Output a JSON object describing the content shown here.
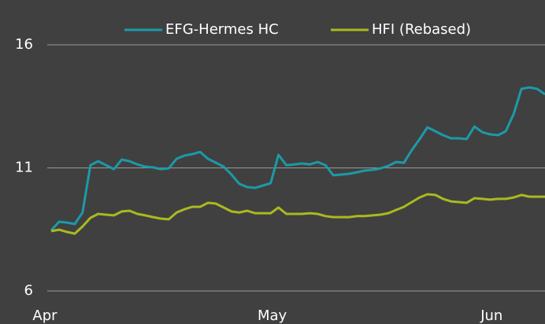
{
  "chart_data": {
    "type": "line",
    "categories": [
      "Apr",
      null,
      null,
      null,
      null,
      null,
      null,
      null,
      null,
      null,
      null,
      null,
      null,
      null,
      null,
      null,
      null,
      null,
      null,
      null,
      null,
      null,
      null,
      null,
      null,
      null,
      null,
      null,
      null,
      "May",
      null,
      null,
      null,
      null,
      null,
      null,
      null,
      null,
      null,
      null,
      null,
      null,
      null,
      null,
      null,
      null,
      null,
      null,
      null,
      null,
      null,
      null,
      null,
      null,
      null,
      null,
      null,
      "Jun",
      null,
      null,
      null,
      null,
      null,
      null
    ],
    "series": [
      {
        "name": "EFG-Hermes HC",
        "color": "#1c9aa8",
        "values": [
          8.46,
          8.81,
          8.78,
          8.72,
          9.19,
          11.11,
          11.27,
          11.11,
          10.95,
          11.34,
          11.27,
          11.14,
          11.05,
          11.02,
          10.95,
          10.98,
          11.37,
          11.5,
          11.56,
          11.65,
          11.37,
          11.21,
          11.05,
          10.73,
          10.35,
          10.22,
          10.19,
          10.28,
          10.38,
          11.53,
          11.11,
          11.14,
          11.18,
          11.14,
          11.24,
          11.11,
          10.7,
          10.73,
          10.76,
          10.82,
          10.89,
          10.92,
          10.98,
          11.08,
          11.24,
          11.21,
          11.72,
          12.17,
          12.65,
          12.49,
          12.33,
          12.2,
          12.2,
          12.17,
          12.68,
          12.45,
          12.36,
          12.33,
          12.49,
          13.19,
          14.21,
          14.27,
          14.21,
          13.99
        ]
      },
      {
        "name": "HFI (Rebased)",
        "color": "#a9ba1e",
        "values": [
          8.43,
          8.49,
          8.4,
          8.33,
          8.62,
          8.97,
          9.13,
          9.1,
          9.07,
          9.23,
          9.26,
          9.13,
          9.07,
          9.0,
          8.94,
          8.91,
          9.19,
          9.32,
          9.42,
          9.42,
          9.58,
          9.55,
          9.39,
          9.23,
          9.19,
          9.26,
          9.16,
          9.16,
          9.16,
          9.39,
          9.13,
          9.13,
          9.13,
          9.16,
          9.13,
          9.04,
          9.0,
          9.0,
          9.0,
          9.04,
          9.04,
          9.07,
          9.1,
          9.16,
          9.29,
          9.42,
          9.61,
          9.8,
          9.93,
          9.9,
          9.74,
          9.64,
          9.61,
          9.58,
          9.77,
          9.74,
          9.71,
          9.74,
          9.74,
          9.8,
          9.9,
          9.83,
          9.83,
          9.83
        ]
      }
    ],
    "ylim": [
      6,
      16
    ],
    "yticks": [
      6,
      11,
      16
    ],
    "grid": true,
    "legend": "top"
  }
}
